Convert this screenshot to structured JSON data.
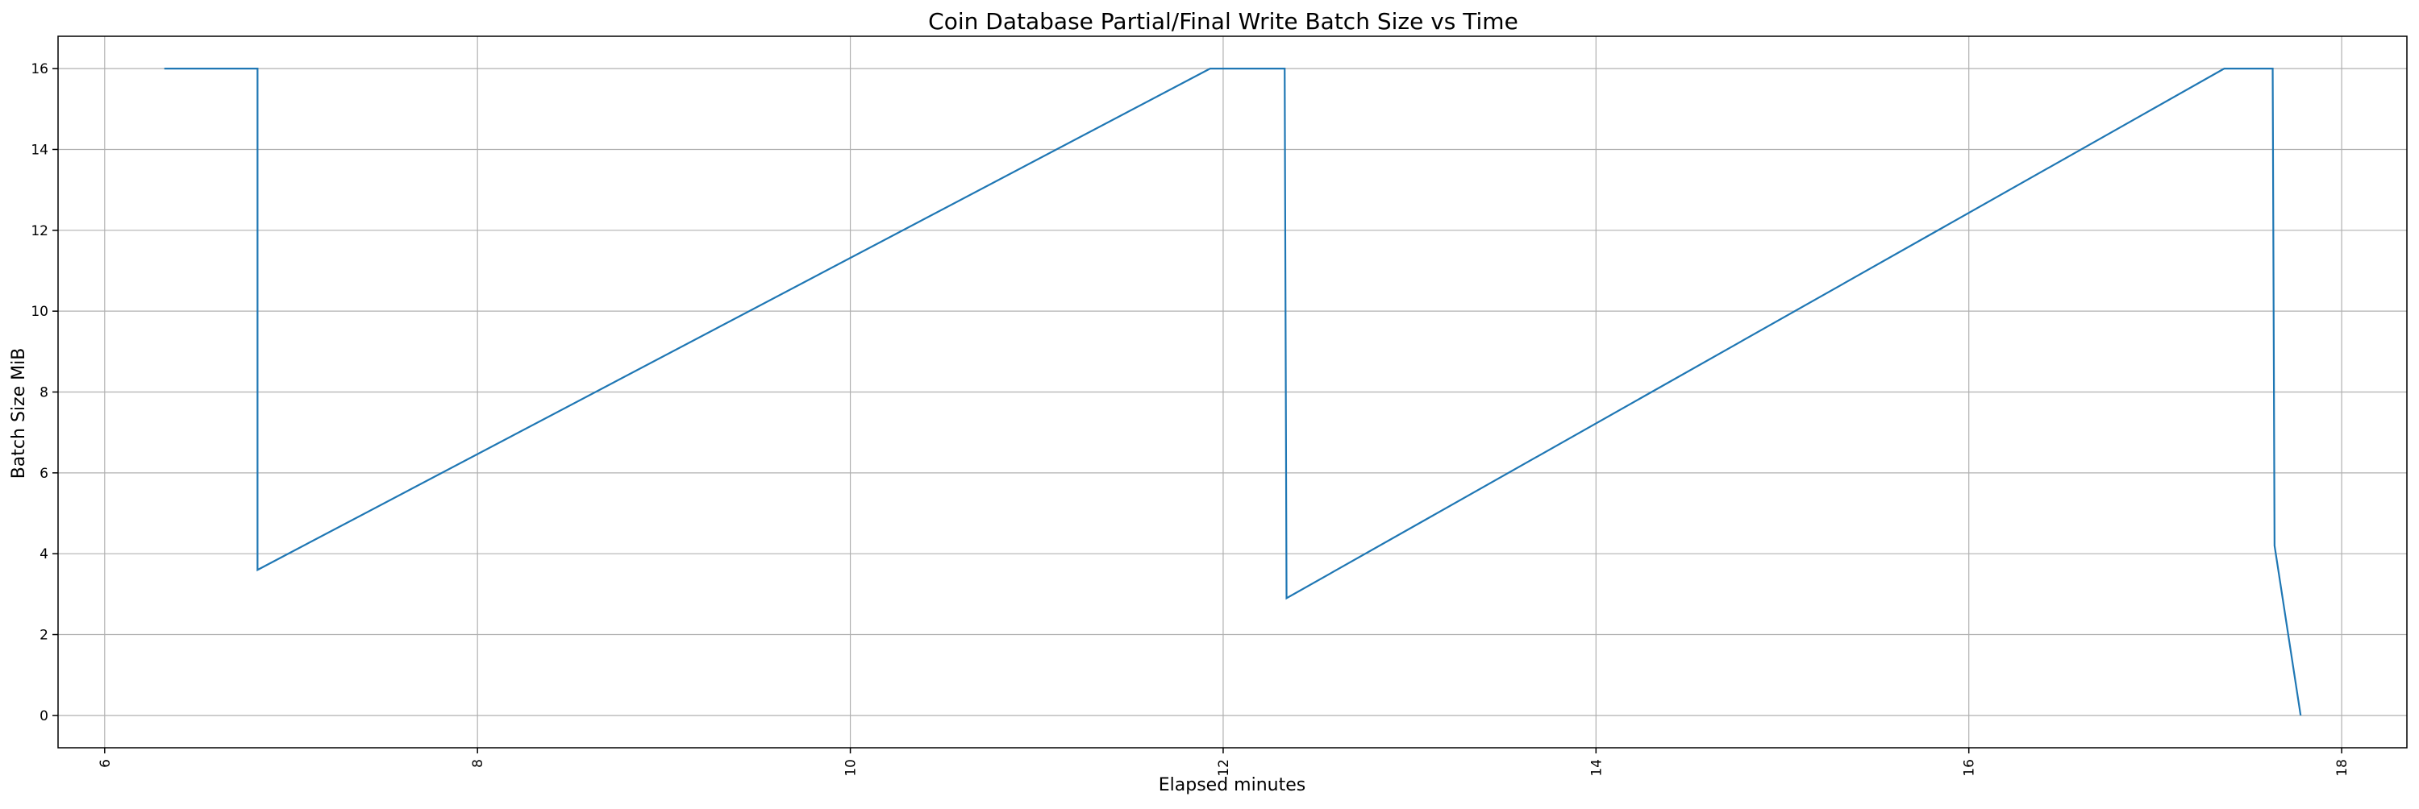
{
  "chart_data": {
    "type": "line",
    "title": "Coin Database Partial/Final Write Batch Size vs Time",
    "xlabel": "Elapsed minutes",
    "ylabel": "Batch Size MiB",
    "xlim": [
      5.75,
      18.35
    ],
    "ylim": [
      -0.8,
      16.8
    ],
    "grid": true,
    "x_ticks": [
      6,
      8,
      10,
      12,
      14,
      16,
      18
    ],
    "y_ticks": [
      0,
      2,
      4,
      6,
      8,
      10,
      12,
      14,
      16
    ],
    "x_tick_labels": [
      "6",
      "8",
      "10",
      "12",
      "14",
      "16",
      "18"
    ],
    "y_tick_labels": [
      "0",
      "2",
      "4",
      "6",
      "8",
      "10",
      "12",
      "14",
      "16"
    ],
    "series": [
      {
        "color": "#1f77b4",
        "x": [
          6.32,
          6.82,
          6.82,
          11.93,
          12.33,
          12.34,
          17.37,
          17.63,
          17.64,
          17.78
        ],
        "y": [
          16.0,
          16.0,
          3.6,
          16.0,
          16.0,
          2.9,
          16.0,
          16.0,
          4.2,
          0.0
        ]
      }
    ]
  }
}
